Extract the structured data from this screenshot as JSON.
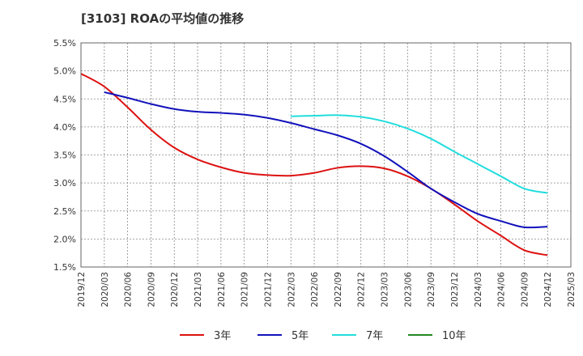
{
  "chart_data": {
    "type": "line",
    "title": "[3103]  ROAの平均値の推移",
    "xlabel": "",
    "ylabel": "",
    "ylim": [
      1.5,
      5.5
    ],
    "y_ticks": [
      "1.5%",
      "2.0%",
      "2.5%",
      "3.0%",
      "3.5%",
      "4.0%",
      "4.5%",
      "5.0%",
      "5.5%"
    ],
    "x_ticks": [
      "2019/12",
      "2020/03",
      "2020/06",
      "2020/09",
      "2020/12",
      "2021/03",
      "2021/06",
      "2021/09",
      "2021/12",
      "2022/03",
      "2022/06",
      "2022/09",
      "2022/12",
      "2023/03",
      "2023/06",
      "2023/09",
      "2023/12",
      "2024/03",
      "2024/06",
      "2024/09",
      "2024/12",
      "2025/03"
    ],
    "grid": true,
    "legend_position": "bottom",
    "series": [
      {
        "name": "3年",
        "color": "#dd1111",
        "points": [
          [
            "2019/12",
            4.95
          ],
          [
            "2020/03",
            4.72
          ],
          [
            "2020/06",
            4.35
          ],
          [
            "2020/09",
            3.95
          ],
          [
            "2020/12",
            3.63
          ],
          [
            "2021/03",
            3.42
          ],
          [
            "2021/06",
            3.28
          ],
          [
            "2021/09",
            3.18
          ],
          [
            "2021/12",
            3.14
          ],
          [
            "2022/03",
            3.13
          ],
          [
            "2022/06",
            3.18
          ],
          [
            "2022/09",
            3.27
          ],
          [
            "2022/12",
            3.3
          ],
          [
            "2023/03",
            3.26
          ],
          [
            "2023/06",
            3.12
          ],
          [
            "2023/09",
            2.9
          ],
          [
            "2023/12",
            2.62
          ],
          [
            "2024/03",
            2.32
          ],
          [
            "2024/06",
            2.06
          ],
          [
            "2024/09",
            1.8
          ],
          [
            "2024/12",
            1.71
          ]
        ]
      },
      {
        "name": "5年",
        "color": "#1111bb",
        "points": [
          [
            "2020/03",
            4.62
          ],
          [
            "2020/06",
            4.52
          ],
          [
            "2020/09",
            4.41
          ],
          [
            "2020/12",
            4.32
          ],
          [
            "2021/03",
            4.27
          ],
          [
            "2021/06",
            4.25
          ],
          [
            "2021/09",
            4.22
          ],
          [
            "2021/12",
            4.16
          ],
          [
            "2022/03",
            4.07
          ],
          [
            "2022/06",
            3.96
          ],
          [
            "2022/09",
            3.85
          ],
          [
            "2022/12",
            3.7
          ],
          [
            "2023/03",
            3.48
          ],
          [
            "2023/06",
            3.2
          ],
          [
            "2023/09",
            2.9
          ],
          [
            "2023/12",
            2.66
          ],
          [
            "2024/03",
            2.45
          ],
          [
            "2024/06",
            2.32
          ],
          [
            "2024/09",
            2.21
          ],
          [
            "2024/12",
            2.22
          ]
        ]
      },
      {
        "name": "7年",
        "color": "#22dddd",
        "points": [
          [
            "2022/03",
            4.19
          ],
          [
            "2022/06",
            4.2
          ],
          [
            "2022/09",
            4.21
          ],
          [
            "2022/12",
            4.18
          ],
          [
            "2023/03",
            4.1
          ],
          [
            "2023/06",
            3.97
          ],
          [
            "2023/09",
            3.79
          ],
          [
            "2023/12",
            3.56
          ],
          [
            "2024/03",
            3.34
          ],
          [
            "2024/06",
            3.12
          ],
          [
            "2024/09",
            2.9
          ],
          [
            "2024/12",
            2.82
          ]
        ]
      },
      {
        "name": "10年",
        "color": "#228822",
        "points": []
      }
    ]
  }
}
